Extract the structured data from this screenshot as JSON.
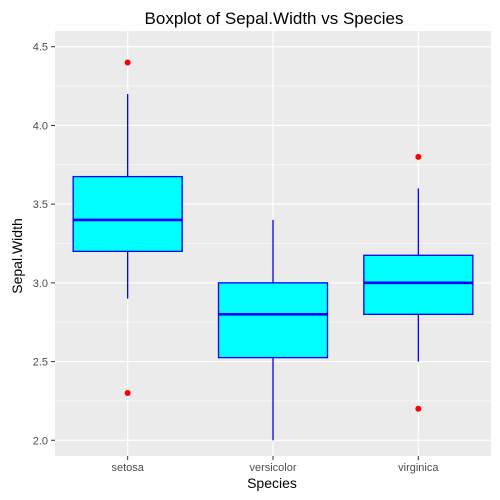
{
  "chart_data": {
    "type": "boxplot",
    "title": "Boxplot of Sepal.Width vs Species",
    "xlabel": "Species",
    "ylabel": "Sepal.Width",
    "ylim": [
      1.9,
      4.6
    ],
    "yticks": [
      2.0,
      2.5,
      3.0,
      3.5,
      4.0,
      4.5
    ],
    "ytick_labels": [
      "2.0",
      "2.5",
      "3.0",
      "3.5",
      "4.0",
      "4.5"
    ],
    "grid": true,
    "legend": "none",
    "colors": {
      "panel": "#ebebeb",
      "gridline": "#ffffff",
      "box_fill": "#00ffff",
      "box_stroke": "#0000ff",
      "outlier": "#ff0000"
    },
    "categories": [
      "setosa",
      "versicolor",
      "virginica"
    ],
    "boxes": [
      {
        "category": "setosa",
        "whisker_low": 2.9,
        "q1": 3.2,
        "median": 3.4,
        "q3": 3.675,
        "whisker_high": 4.2,
        "outliers": [
          4.4,
          2.3
        ]
      },
      {
        "category": "versicolor",
        "whisker_low": 2.0,
        "q1": 2.525,
        "median": 2.8,
        "q3": 3.0,
        "whisker_high": 3.4,
        "outliers": []
      },
      {
        "category": "virginica",
        "whisker_low": 2.5,
        "q1": 2.8,
        "median": 3.0,
        "q3": 3.175,
        "whisker_high": 3.6,
        "outliers": [
          3.8,
          2.2
        ]
      }
    ]
  }
}
